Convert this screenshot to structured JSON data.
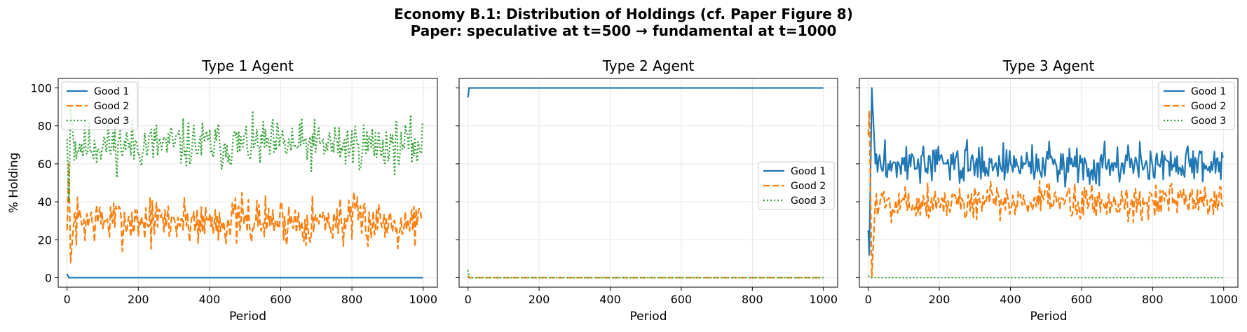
{
  "figure": {
    "suptitle_line1": "Economy B.1: Distribution of Holdings (cf. Paper Figure 8)",
    "suptitle_line2": "Paper: speculative at t=500 → fundamental at t=1000"
  },
  "colors": {
    "good1": "#1f77b4",
    "good2": "#ff7f0e",
    "good3": "#2ca02c",
    "grid": "#e6e6e6"
  },
  "chart_data": [
    {
      "type": "line",
      "title": "Type 1 Agent",
      "xlabel": "Period",
      "ylabel": "% Holding",
      "xlim": [
        -25,
        1040
      ],
      "ylim": [
        -5,
        105
      ],
      "xticks": [
        0,
        200,
        400,
        600,
        800,
        1000
      ],
      "yticks": [
        0,
        20,
        40,
        60,
        80,
        100
      ],
      "grid": true,
      "legend_position": "upper-left",
      "series": [
        {
          "name": "Good 1",
          "style": "solid",
          "color": "#1f77b4",
          "segments": [
            [
              0,
              2
            ],
            [
              5,
              0
            ],
            [
              1000,
              0
            ]
          ]
        },
        {
          "name": "Good 2",
          "style": "dashed",
          "color": "#ff7f0e",
          "segments": [
            [
              0,
              25
            ],
            [
              5,
              60
            ],
            [
              10,
              8
            ],
            [
              20,
              32
            ],
            [
              1000,
              30
            ]
          ],
          "noise": {
            "start": 20,
            "end": 1000,
            "mean": 30,
            "amp": 9,
            "seed": 7
          }
        },
        {
          "name": "Good 3",
          "style": "dotted",
          "color": "#2ca02c",
          "segments": [
            [
              0,
              73
            ],
            [
              5,
              40
            ],
            [
              10,
              90
            ],
            [
              20,
              68
            ],
            [
              1000,
              70
            ]
          ],
          "noise": {
            "start": 20,
            "end": 1000,
            "mean": 70,
            "amp": 9,
            "seed": 11
          }
        }
      ]
    },
    {
      "type": "line",
      "title": "Type 2 Agent",
      "xlabel": "Period",
      "ylabel": "",
      "xlim": [
        -25,
        1040
      ],
      "ylim": [
        -5,
        105
      ],
      "xticks": [
        0,
        200,
        400,
        600,
        800,
        1000
      ],
      "yticks": [
        0,
        20,
        40,
        60,
        80,
        100
      ],
      "grid": true,
      "legend_position": "center-right",
      "series": [
        {
          "name": "Good 1",
          "style": "solid",
          "color": "#1f77b4",
          "segments": [
            [
              0,
              95
            ],
            [
              3,
              100
            ],
            [
              1000,
              100
            ]
          ]
        },
        {
          "name": "Good 2",
          "style": "dashed",
          "color": "#ff7f0e",
          "segments": [
            [
              0,
              1
            ],
            [
              3,
              0
            ],
            [
              1000,
              0
            ]
          ]
        },
        {
          "name": "Good 3",
          "style": "dotted",
          "color": "#2ca02c",
          "segments": [
            [
              0,
              4
            ],
            [
              3,
              0
            ],
            [
              1000,
              0
            ]
          ]
        }
      ]
    },
    {
      "type": "line",
      "title": "Type 3 Agent",
      "xlabel": "Period",
      "ylabel": "",
      "xlim": [
        -25,
        1040
      ],
      "ylim": [
        -5,
        105
      ],
      "xticks": [
        0,
        200,
        400,
        600,
        800,
        1000
      ],
      "yticks": [
        0,
        20,
        40,
        60,
        80,
        100
      ],
      "grid": true,
      "legend_position": "upper-right",
      "series": [
        {
          "name": "Good 1",
          "style": "solid",
          "color": "#1f77b4",
          "segments": [
            [
              0,
              25
            ],
            [
              3,
              12
            ],
            [
              10,
              100
            ],
            [
              20,
              60
            ],
            [
              1000,
              60
            ]
          ],
          "noise": {
            "start": 20,
            "end": 1000,
            "mean": 60,
            "amp": 7,
            "seed": 3
          }
        },
        {
          "name": "Good 2",
          "style": "dashed",
          "color": "#ff7f0e",
          "segments": [
            [
              0,
              75
            ],
            [
              3,
              88
            ],
            [
              10,
              0
            ],
            [
              20,
              40
            ],
            [
              1000,
              40
            ]
          ],
          "noise": {
            "start": 20,
            "end": 1000,
            "mean": 40,
            "amp": 7,
            "seed": 5
          }
        },
        {
          "name": "Good 3",
          "style": "dotted",
          "color": "#2ca02c",
          "segments": [
            [
              0,
              1
            ],
            [
              5,
              0
            ],
            [
              1000,
              0
            ]
          ]
        }
      ]
    }
  ]
}
